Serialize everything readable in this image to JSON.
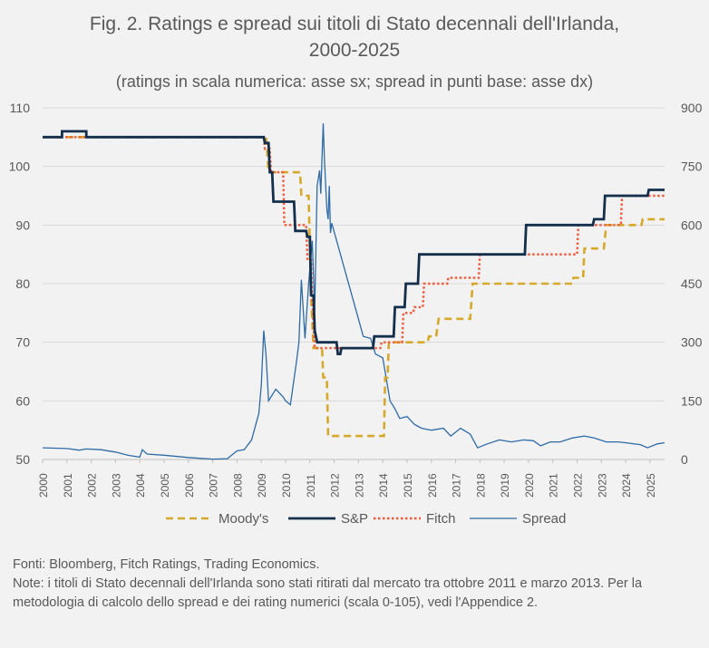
{
  "title_line1": "Fig. 2. Ratings e spread sui titoli di Stato decennali dell'Irlanda,",
  "title_line2": "2000-2025",
  "subtitle": "(ratings in scala numerica: asse sx; spread in punti base: asse dx)",
  "notes": {
    "sources": "Fonti: Bloomberg, Fitch Ratings, Trading Economics.",
    "note": "Note: i titoli di Stato decennali dell'Irlanda sono stati ritirati dal mercato tra ottobre 2011 e marzo 2013. Per la metodologia di calcolo dello spread e dei rating numerici (scala 0-105), vedi l'Appendice 2."
  },
  "colors": {
    "moodys": "#d6a92a",
    "sp": "#132f4c",
    "fitch": "#f15a3a",
    "spread": "#2e6ba6",
    "grid": "#d9d9d9"
  },
  "chart_data": {
    "type": "line",
    "x_ticks": [
      "2000",
      "2001",
      "2002",
      "2003",
      "2004",
      "2005",
      "2006",
      "2007",
      "2008",
      "2009",
      "2010",
      "2011",
      "2012",
      "2013",
      "2014",
      "2015",
      "2016",
      "2017",
      "2018",
      "2019",
      "2020",
      "2021",
      "2022",
      "2023",
      "2024",
      "2025"
    ],
    "y_left": {
      "min": 50,
      "max": 110,
      "ticks": [
        50,
        60,
        70,
        80,
        90,
        100,
        110
      ]
    },
    "y_right": {
      "min": 0,
      "max": 900,
      "ticks": [
        0,
        150,
        300,
        450,
        600,
        750,
        900
      ]
    },
    "x_range": [
      2000,
      2025.6
    ],
    "grid": true,
    "legend_position": "bottom",
    "series": [
      {
        "name": "Moody's",
        "axis": "left",
        "style": "step-dashed",
        "color_key": "moodys",
        "points": [
          [
            2000,
            105
          ],
          [
            2009.2,
            105
          ],
          [
            2009.3,
            99
          ],
          [
            2010.6,
            99
          ],
          [
            2010.65,
            95
          ],
          [
            2010.95,
            95
          ],
          [
            2011.05,
            78
          ],
          [
            2011.15,
            69
          ],
          [
            2011.5,
            69
          ],
          [
            2011.55,
            64
          ],
          [
            2011.7,
            64
          ],
          [
            2011.75,
            54
          ],
          [
            2014.05,
            54
          ],
          [
            2014.1,
            64
          ],
          [
            2014.2,
            64
          ],
          [
            2014.25,
            70
          ],
          [
            2015.85,
            70
          ],
          [
            2015.9,
            71
          ],
          [
            2016.2,
            71
          ],
          [
            2016.3,
            74
          ],
          [
            2017.6,
            74
          ],
          [
            2017.7,
            80
          ],
          [
            2021.8,
            80
          ],
          [
            2021.85,
            81
          ],
          [
            2022.25,
            81
          ],
          [
            2022.3,
            86
          ],
          [
            2023.1,
            86
          ],
          [
            2023.2,
            90
          ],
          [
            2024.65,
            90
          ],
          [
            2024.7,
            91
          ],
          [
            2025.6,
            91
          ]
        ]
      },
      {
        "name": "S&P",
        "axis": "left",
        "style": "step-solid",
        "color_key": "sp",
        "points": [
          [
            2000,
            105
          ],
          [
            2000.8,
            105
          ],
          [
            2000.8,
            106
          ],
          [
            2001.8,
            106
          ],
          [
            2001.8,
            105
          ],
          [
            2009.1,
            105
          ],
          [
            2009.15,
            104
          ],
          [
            2009.3,
            104
          ],
          [
            2009.35,
            99
          ],
          [
            2009.45,
            99
          ],
          [
            2009.5,
            94
          ],
          [
            2010.35,
            94
          ],
          [
            2010.4,
            89
          ],
          [
            2010.85,
            89
          ],
          [
            2010.9,
            88
          ],
          [
            2011.0,
            88
          ],
          [
            2011.05,
            78
          ],
          [
            2011.15,
            78
          ],
          [
            2011.2,
            72
          ],
          [
            2011.3,
            70
          ],
          [
            2012.1,
            70
          ],
          [
            2012.15,
            68
          ],
          [
            2012.25,
            68
          ],
          [
            2012.3,
            69
          ],
          [
            2013.6,
            69
          ],
          [
            2013.65,
            71
          ],
          [
            2014.45,
            71
          ],
          [
            2014.5,
            76
          ],
          [
            2014.9,
            76
          ],
          [
            2014.95,
            80
          ],
          [
            2015.45,
            80
          ],
          [
            2015.5,
            85
          ],
          [
            2019.85,
            85
          ],
          [
            2019.9,
            90
          ],
          [
            2022.65,
            90
          ],
          [
            2022.7,
            91
          ],
          [
            2023.1,
            91
          ],
          [
            2023.15,
            95
          ],
          [
            2024.9,
            95
          ],
          [
            2024.95,
            96
          ],
          [
            2025.6,
            96
          ]
        ]
      },
      {
        "name": "Fitch",
        "axis": "left",
        "style": "step-dotted",
        "color_key": "fitch",
        "points": [
          [
            2000,
            105
          ],
          [
            2009.1,
            105
          ],
          [
            2009.15,
            103
          ],
          [
            2009.35,
            103
          ],
          [
            2009.4,
            99
          ],
          [
            2009.9,
            99
          ],
          [
            2009.95,
            90
          ],
          [
            2010.85,
            90
          ],
          [
            2010.9,
            84
          ],
          [
            2011.05,
            84
          ],
          [
            2011.1,
            77
          ],
          [
            2011.2,
            69
          ],
          [
            2012.4,
            69
          ],
          [
            2012.45,
            69
          ],
          [
            2013.9,
            69
          ],
          [
            2013.95,
            70
          ],
          [
            2014.8,
            70
          ],
          [
            2014.85,
            75
          ],
          [
            2015.25,
            75
          ],
          [
            2015.3,
            76
          ],
          [
            2015.65,
            76
          ],
          [
            2015.7,
            80
          ],
          [
            2016.65,
            80
          ],
          [
            2016.7,
            81
          ],
          [
            2017.95,
            81
          ],
          [
            2018.0,
            85
          ],
          [
            2022.0,
            85
          ],
          [
            2022.05,
            90
          ],
          [
            2023.8,
            90
          ],
          [
            2023.85,
            95
          ],
          [
            2025.6,
            95
          ]
        ]
      },
      {
        "name": "Spread",
        "axis": "right",
        "style": "line",
        "color_key": "spread",
        "points": [
          [
            2000,
            30
          ],
          [
            2001,
            28
          ],
          [
            2001.5,
            24
          ],
          [
            2001.8,
            27
          ],
          [
            2002.4,
            25
          ],
          [
            2003,
            19
          ],
          [
            2003.5,
            11
          ],
          [
            2004,
            6
          ],
          [
            2004.1,
            25
          ],
          [
            2004.3,
            14
          ],
          [
            2005,
            11
          ],
          [
            2006,
            5
          ],
          [
            2007,
            1
          ],
          [
            2007.6,
            2
          ],
          [
            2008.0,
            22
          ],
          [
            2008.3,
            25
          ],
          [
            2008.6,
            50
          ],
          [
            2008.9,
            118
          ],
          [
            2009.0,
            190
          ],
          [
            2009.1,
            330
          ],
          [
            2009.2,
            265
          ],
          [
            2009.3,
            150
          ],
          [
            2009.6,
            180
          ],
          [
            2009.9,
            160
          ],
          [
            2010.0,
            150
          ],
          [
            2010.2,
            140
          ],
          [
            2010.45,
            250
          ],
          [
            2010.55,
            300
          ],
          [
            2010.65,
            460
          ],
          [
            2010.8,
            310
          ],
          [
            2010.95,
            450
          ],
          [
            2011.1,
            560
          ],
          [
            2011.2,
            380
          ],
          [
            2011.3,
            700
          ],
          [
            2011.4,
            740
          ],
          [
            2011.45,
            680
          ],
          [
            2011.55,
            860
          ],
          [
            2011.6,
            770
          ],
          [
            2011.7,
            640
          ],
          [
            2011.75,
            615
          ],
          [
            2011.8,
            700
          ],
          [
            2011.85,
            580
          ],
          [
            2011.9,
            605
          ],
          [
            2013.2,
            315
          ],
          [
            2013.5,
            310
          ],
          [
            2013.7,
            270
          ],
          [
            2014.0,
            260
          ],
          [
            2014.3,
            150
          ],
          [
            2014.5,
            130
          ],
          [
            2014.7,
            105
          ],
          [
            2015.0,
            110
          ],
          [
            2015.3,
            90
          ],
          [
            2015.6,
            80
          ],
          [
            2016.0,
            75
          ],
          [
            2016.5,
            80
          ],
          [
            2016.8,
            60
          ],
          [
            2017.2,
            80
          ],
          [
            2017.6,
            65
          ],
          [
            2017.9,
            30
          ],
          [
            2018.3,
            40
          ],
          [
            2018.8,
            50
          ],
          [
            2019.3,
            45
          ],
          [
            2019.8,
            50
          ],
          [
            2020.2,
            48
          ],
          [
            2020.5,
            35
          ],
          [
            2020.9,
            45
          ],
          [
            2021.3,
            45
          ],
          [
            2021.8,
            55
          ],
          [
            2022.3,
            60
          ],
          [
            2022.7,
            55
          ],
          [
            2023.2,
            45
          ],
          [
            2023.7,
            45
          ],
          [
            2024.1,
            42
          ],
          [
            2024.6,
            38
          ],
          [
            2024.9,
            30
          ],
          [
            2025.3,
            40
          ],
          [
            2025.6,
            43
          ]
        ]
      }
    ]
  }
}
